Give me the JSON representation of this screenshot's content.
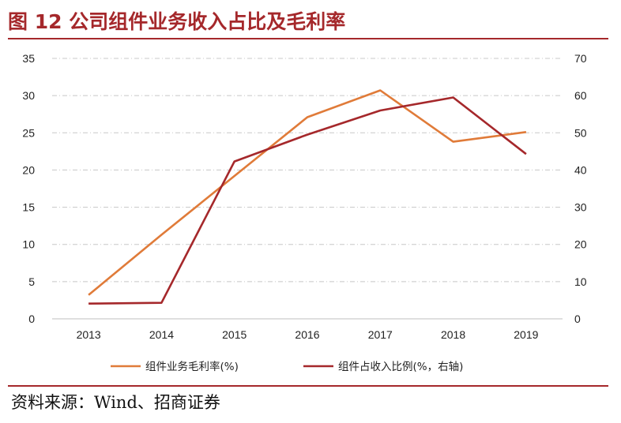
{
  "header": {
    "figure_title": "图 12  公司组件业务收入占比及毛利率"
  },
  "footer": {
    "source": "资料来源：Wind、招商证券"
  },
  "chart_data": {
    "type": "line",
    "title": "",
    "x": [
      "2013",
      "2014",
      "2015",
      "2016",
      "2017",
      "2018",
      "2019"
    ],
    "y_left": {
      "ticks": [
        "0",
        "5",
        "10",
        "15",
        "20",
        "25",
        "30",
        "35"
      ],
      "lim": [
        0,
        35
      ]
    },
    "y_right": {
      "ticks": [
        "0",
        "10",
        "20",
        "30",
        "40",
        "50",
        "60",
        "70"
      ],
      "lim": [
        0,
        70
      ]
    },
    "grid": true,
    "legend_position": "bottom",
    "series": [
      {
        "name": "组件业务毛利率(%)",
        "axis": "left",
        "color": "#e07b39",
        "values": [
          3.2,
          11.3,
          19.2,
          27.1,
          30.7,
          23.8,
          25.1
        ]
      },
      {
        "name": "组件占收入比例(%，右轴)",
        "axis": "right",
        "color": "#a5282b",
        "values": [
          4.1,
          4.3,
          42.3,
          49.5,
          56.0,
          59.5,
          44.3
        ]
      }
    ]
  }
}
